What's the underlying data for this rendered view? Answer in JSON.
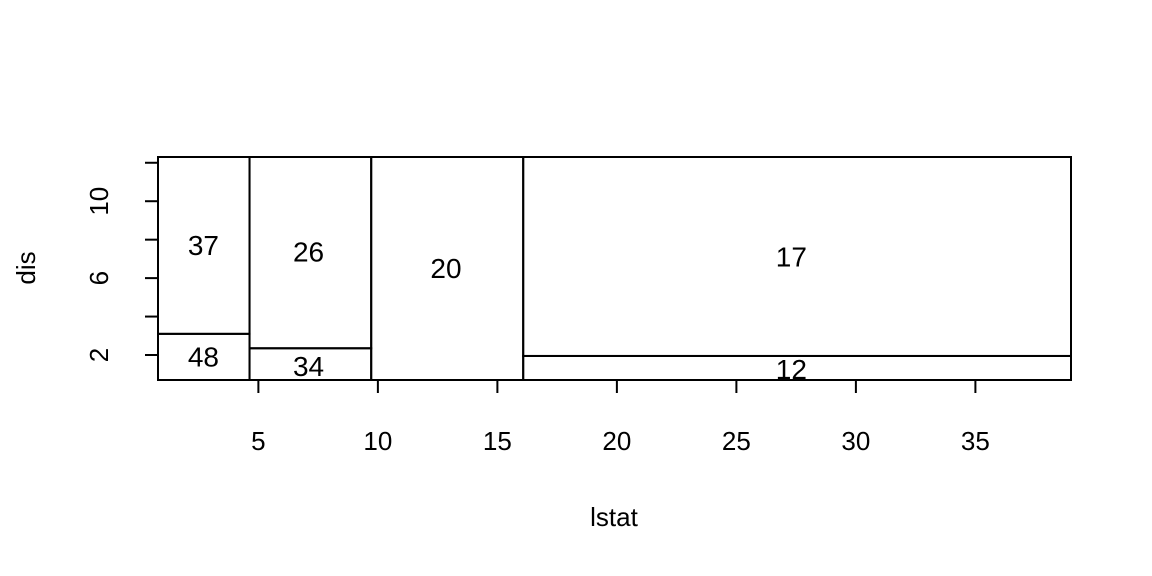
{
  "chart_data": {
    "type": "partition",
    "xlabel": "lstat",
    "ylabel": "dis",
    "xlim": [
      0.8,
      39.0
    ],
    "ylim": [
      0.7,
      12.3
    ],
    "x_ticks": [
      5,
      10,
      15,
      20,
      25,
      30,
      35
    ],
    "y_ticks": [
      2,
      4,
      6,
      8,
      10,
      12
    ],
    "y_tick_labels": [
      {
        "value": 2,
        "label": "2"
      },
      {
        "value": 6,
        "label": "6"
      },
      {
        "value": 10,
        "label": "10"
      }
    ],
    "x_splits": [
      4.63,
      9.72,
      16.08
    ],
    "regions": [
      {
        "label": "48",
        "x0": 0.8,
        "x1": 4.63,
        "y0": 0.7,
        "y1": 3.1,
        "label_x": 2.7,
        "label_y": 1.9
      },
      {
        "label": "37",
        "x0": 0.8,
        "x1": 4.63,
        "y0": 3.1,
        "y1": 12.3,
        "label_x": 2.7,
        "label_y": 7.7
      },
      {
        "label": "34",
        "x0": 4.63,
        "x1": 9.72,
        "y0": 0.7,
        "y1": 2.35,
        "label_x": 7.1,
        "label_y": 1.4
      },
      {
        "label": "26",
        "x0": 4.63,
        "x1": 9.72,
        "y0": 2.35,
        "y1": 12.3,
        "label_x": 7.1,
        "label_y": 7.35
      },
      {
        "label": "20",
        "x0": 9.72,
        "x1": 16.08,
        "y0": 0.7,
        "y1": 12.3,
        "label_x": 12.85,
        "label_y": 6.5
      },
      {
        "label": "12",
        "x0": 16.08,
        "x1": 39.0,
        "y0": 0.7,
        "y1": 1.95,
        "label_x": 27.3,
        "label_y": 1.25
      },
      {
        "label": "17",
        "x0": 16.08,
        "x1": 39.0,
        "y0": 1.95,
        "y1": 12.3,
        "label_x": 27.3,
        "label_y": 7.1
      }
    ]
  }
}
